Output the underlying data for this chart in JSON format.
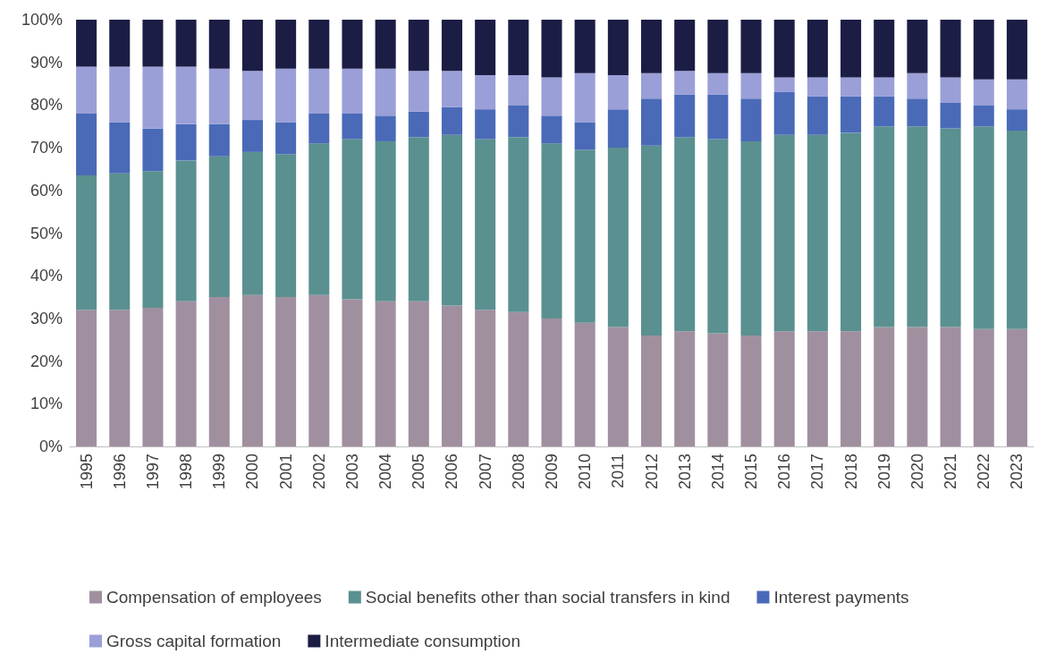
{
  "chart_data": {
    "type": "bar",
    "stacked": true,
    "categories": [
      "1995",
      "1996",
      "1997",
      "1998",
      "1999",
      "2000",
      "2001",
      "2002",
      "2003",
      "2004",
      "2005",
      "2006",
      "2007",
      "2008",
      "2009",
      "2010",
      "2011",
      "2012",
      "2013",
      "2014",
      "2015",
      "2016",
      "2017",
      "2018",
      "2019",
      "2020",
      "2021",
      "2022",
      "2023"
    ],
    "series": [
      {
        "name": "Compensation of employees",
        "color": "#a0909f",
        "values": [
          32,
          32,
          32.5,
          34,
          35,
          35.5,
          35,
          35.5,
          34.5,
          34,
          34,
          33,
          32,
          31.5,
          30,
          29,
          28,
          26,
          27,
          26.5,
          26,
          27,
          27,
          27,
          28,
          28,
          28,
          27.5,
          27.5
        ]
      },
      {
        "name": "Social benefits other than social transfers in kind",
        "color": "#5a9090",
        "values": [
          31.5,
          32,
          32,
          33,
          33,
          33.5,
          33.5,
          35.5,
          37.5,
          37.5,
          38.5,
          40,
          40,
          41,
          41,
          40.5,
          42,
          44.5,
          45.5,
          45.5,
          45.5,
          46,
          46,
          46.5,
          47,
          47,
          46.5,
          47.5,
          46.5
        ]
      },
      {
        "name": "Interest payments",
        "color": "#4a6ab8",
        "values": [
          14.5,
          12,
          10,
          8.5,
          7.5,
          7.5,
          7.5,
          7,
          6,
          6,
          6,
          6.5,
          7,
          7.5,
          6.5,
          6.5,
          9,
          11,
          10,
          10.5,
          10,
          10,
          9,
          8.5,
          7,
          6.5,
          6,
          5,
          5
        ]
      },
      {
        "name": "Gross capital formation",
        "color": "#9a9fd8",
        "values": [
          11,
          13,
          14.5,
          13.5,
          13,
          11.5,
          12.5,
          10.5,
          10.5,
          11,
          9.5,
          8.5,
          8,
          7,
          9,
          11.5,
          8,
          6,
          5.5,
          5,
          6,
          3.5,
          4.5,
          4.5,
          4.5,
          6,
          6,
          6,
          7
        ]
      },
      {
        "name": "Intermediate consumption",
        "color": "#1c1d45",
        "values": [
          11,
          11,
          11,
          11,
          11.5,
          12,
          11.5,
          11.5,
          11.5,
          11.5,
          12,
          12,
          13,
          13,
          13.5,
          12.5,
          13,
          12.5,
          12,
          12.5,
          12.5,
          13.5,
          13.5,
          13.5,
          13.5,
          12.5,
          13.5,
          14,
          14
        ]
      }
    ],
    "ylim": [
      0,
      100
    ],
    "yticks": [
      {
        "value": 0,
        "label": "0%"
      },
      {
        "value": 10,
        "label": "10%"
      },
      {
        "value": 20,
        "label": "20%"
      },
      {
        "value": 30,
        "label": "30%"
      },
      {
        "value": 40,
        "label": "40%"
      },
      {
        "value": 50,
        "label": "50%"
      },
      {
        "value": 60,
        "label": "60%"
      },
      {
        "value": 70,
        "label": "70%"
      },
      {
        "value": 80,
        "label": "80%"
      },
      {
        "value": 90,
        "label": "90%"
      },
      {
        "value": 100,
        "label": "100%"
      }
    ],
    "grid": false,
    "legend": "bottom"
  }
}
